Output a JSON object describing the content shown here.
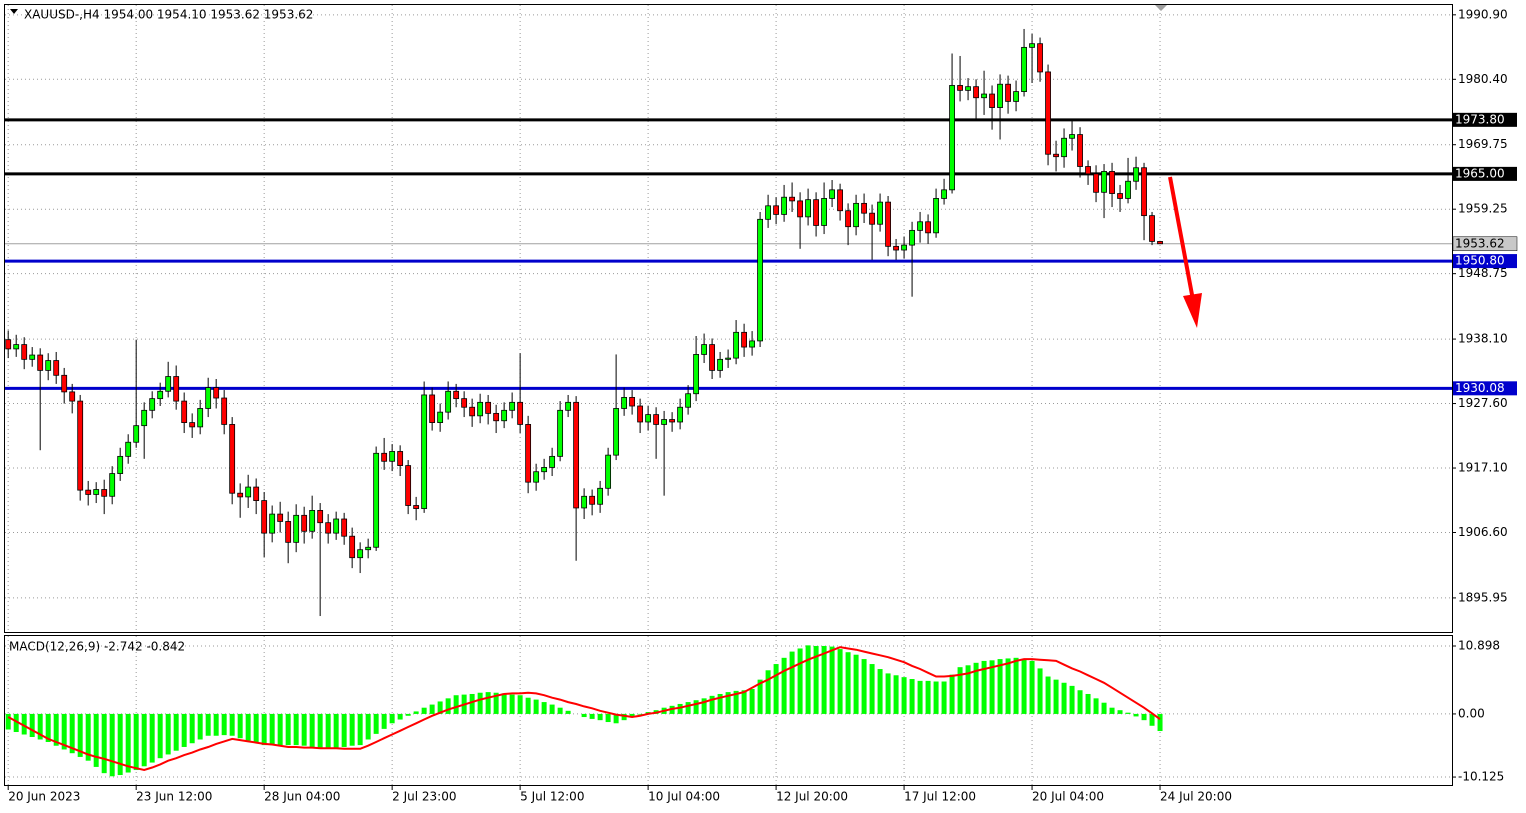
{
  "chart_data": [
    {
      "type": "candlestick",
      "title": "XAUUSD-,H4  1954.00 1954.10 1953.62 1953.62",
      "up_color": "#00ff00",
      "down_color": "#ff0000",
      "grid": true,
      "xlim": [
        -0.4,
        180.5
      ],
      "ylim": [
        1890.4,
        1992.5
      ],
      "yticks": [
        {
          "value": 1990.9,
          "label": "1990.90"
        },
        {
          "value": 1980.4,
          "label": "1980.40"
        },
        1969.75,
        1959.25,
        1948.75,
        {
          "value": 1938.1,
          "label": "1938.10"
        },
        {
          "value": 1927.6,
          "label": "1927.60"
        },
        {
          "value": 1917.1,
          "label": "1917.10"
        },
        {
          "value": 1906.6,
          "label": "1906.60"
        },
        1895.95
      ],
      "xticks": [
        {
          "value": 0,
          "label": "20 Jun 2023"
        },
        {
          "value": 16,
          "label": "23 Jun 12:00"
        },
        {
          "value": 32,
          "label": "28 Jun 04:00"
        },
        {
          "value": 48,
          "label": "2 Jul 23:00"
        },
        {
          "value": 64,
          "label": "5 Jul 12:00"
        },
        {
          "value": 80,
          "label": "10 Jul 04:00"
        },
        {
          "value": 96,
          "label": "12 Jul 20:00"
        },
        {
          "value": 112,
          "label": "17 Jul 12:00"
        },
        {
          "value": 128,
          "label": "20 Jul 04:00"
        },
        {
          "value": 144,
          "label": "24 Jul 20:00"
        }
      ],
      "levels": [
        {
          "value": 1973.8,
          "label": "1973.80",
          "color": "#000000"
        },
        {
          "value": 1965,
          "label": "1965.00",
          "color": "#000000"
        },
        {
          "value": 1950.8,
          "label": "1950.80",
          "color": "#0000cc"
        },
        {
          "value": 1930.08,
          "label": "1930.08",
          "color": "#0000cc"
        }
      ],
      "last_price": 1953.62,
      "open": [
        1938.0,
        1936.5,
        1937.2,
        1934.8,
        1935.5,
        1933.0,
        1934.6,
        1932.2,
        1929.5,
        1928.0,
        1913.5,
        1912.8,
        1913.6,
        1912.5,
        1916.2,
        1919.0,
        1921.3,
        1924.0,
        1926.5,
        1928.4,
        1929.6,
        1932.0,
        1928.0,
        1924.5,
        1923.8,
        1926.8,
        1930.2,
        1928.5,
        1924.2,
        1913.0,
        1912.4,
        1914.0,
        1911.8,
        1906.5,
        1909.6,
        1908.4,
        1905.0,
        1909.4,
        1906.8,
        1910.2,
        1908.2,
        1906.5,
        1908.8,
        1906.0,
        1902.5,
        1903.8,
        1904.2,
        1919.5,
        1918.2,
        1919.8,
        1917.5,
        1911.0,
        1910.5,
        1929.0,
        1924.5,
        1926.2,
        1929.6,
        1928.4,
        1927.0,
        1925.6,
        1927.8,
        1926.0,
        1924.8,
        1926.5,
        1927.8,
        1924.2,
        1914.8,
        1916.5,
        1917.2,
        1919.0,
        1926.5,
        1927.8,
        1910.6,
        1912.5,
        1911.2,
        1913.8,
        1919.2,
        1926.8,
        1928.6,
        1927.2,
        1924.6,
        1925.8,
        1924.2,
        1925.0,
        1924.6,
        1927.0,
        1929.2,
        1935.6,
        1937.2,
        1933.0,
        1934.8,
        1935.0,
        1939.2,
        1936.8,
        1937.8,
        1957.6,
        1959.8,
        1958.4,
        1961.2,
        1960.6,
        1958.0,
        1960.8,
        1956.6,
        1961.0,
        1962.4,
        1959.0,
        1956.4,
        1960.2,
        1958.6,
        1956.8,
        1960.4,
        1953.2,
        1952.6,
        1953.4,
        1955.8,
        1957.2,
        1955.4,
        1961.0,
        1962.4,
        1979.4,
        1978.6,
        1979.2,
        1977.4,
        1978.0,
        1975.8,
        1979.6,
        1976.8,
        1978.4,
        1985.6,
        1986.2,
        1981.6,
        1968.2,
        1967.8,
        1970.8,
        1971.4,
        1966.2,
        1965.0,
        1962.0,
        1965.4,
        1961.8,
        1961.0,
        1963.8,
        1966.0,
        1958.2,
        1954.0
      ],
      "high": [
        1939.5,
        1938.8,
        1938.4,
        1936.8,
        1936.6,
        1935.8,
        1936.0,
        1933.4,
        1930.8,
        1929.0,
        1915.0,
        1914.8,
        1915.2,
        1917.4,
        1920.4,
        1922.6,
        1938.0,
        1927.8,
        1929.6,
        1931.0,
        1934.4,
        1933.8,
        1929.4,
        1926.0,
        1928.2,
        1931.8,
        1931.6,
        1929.8,
        1925.4,
        1914.6,
        1916.0,
        1915.4,
        1913.2,
        1911.0,
        1911.6,
        1910.0,
        1911.2,
        1910.8,
        1912.6,
        1911.4,
        1909.6,
        1910.0,
        1909.8,
        1907.4,
        1905.0,
        1905.6,
        1920.6,
        1922.0,
        1921.0,
        1920.8,
        1918.4,
        1912.4,
        1931.2,
        1930.2,
        1927.6,
        1931.2,
        1930.8,
        1929.6,
        1928.4,
        1929.2,
        1929.0,
        1927.4,
        1927.8,
        1929.4,
        1935.8,
        1925.6,
        1917.8,
        1918.6,
        1920.4,
        1928.0,
        1929.0,
        1928.8,
        1913.8,
        1913.6,
        1915.0,
        1920.4,
        1935.6,
        1930.2,
        1929.8,
        1928.4,
        1927.2,
        1927.0,
        1926.4,
        1926.2,
        1928.4,
        1930.6,
        1938.6,
        1939.0,
        1938.2,
        1936.0,
        1936.4,
        1941.2,
        1940.6,
        1939.4,
        1958.8,
        1961.6,
        1961.2,
        1963.2,
        1963.6,
        1962.0,
        1962.6,
        1962.0,
        1963.6,
        1964.0,
        1963.4,
        1960.2,
        1961.6,
        1961.8,
        1960.0,
        1961.8,
        1961.4,
        1954.4,
        1954.8,
        1957.2,
        1958.8,
        1958.4,
        1962.6,
        1964.2,
        1984.6,
        1984.2,
        1980.6,
        1980.4,
        1981.8,
        1979.4,
        1981.2,
        1981.0,
        1980.2,
        1988.6,
        1987.8,
        1987.2,
        1982.8,
        1970.4,
        1972.4,
        1973.8,
        1972.6,
        1967.2,
        1966.4,
        1966.6,
        1966.8,
        1963.2,
        1967.6,
        1967.8,
        1966.8,
        1958.8,
        1954.1
      ],
      "low": [
        1935.0,
        1935.2,
        1933.2,
        1933.6,
        1920.0,
        1931.4,
        1930.8,
        1927.6,
        1926.0,
        1911.8,
        1911.0,
        1911.4,
        1909.6,
        1911.2,
        1915.0,
        1917.8,
        1920.4,
        1918.6,
        1925.2,
        1927.2,
        1928.6,
        1926.6,
        1922.8,
        1922.0,
        1922.6,
        1925.4,
        1926.8,
        1922.6,
        1911.2,
        1909.0,
        1910.6,
        1909.6,
        1902.6,
        1905.0,
        1906.6,
        1901.6,
        1903.4,
        1904.8,
        1905.6,
        1893.0,
        1904.8,
        1905.4,
        1904.6,
        1900.8,
        1900.0,
        1902.4,
        1903.6,
        1916.8,
        1916.6,
        1915.8,
        1909.6,
        1908.6,
        1909.8,
        1923.2,
        1923.0,
        1925.0,
        1927.0,
        1925.4,
        1923.8,
        1924.4,
        1924.2,
        1922.8,
        1923.6,
        1925.2,
        1922.8,
        1913.0,
        1913.4,
        1915.2,
        1915.8,
        1918.2,
        1925.4,
        1902.0,
        1908.8,
        1909.4,
        1909.8,
        1912.6,
        1918.4,
        1925.6,
        1925.8,
        1922.8,
        1923.2,
        1918.6,
        1912.6,
        1923.0,
        1923.4,
        1925.8,
        1928.0,
        1934.2,
        1931.6,
        1931.8,
        1933.4,
        1934.0,
        1935.2,
        1935.4,
        1936.8,
        1956.2,
        1956.8,
        1957.2,
        1958.8,
        1952.8,
        1956.6,
        1954.8,
        1955.2,
        1959.6,
        1957.4,
        1953.4,
        1955.0,
        1957.0,
        1951.0,
        1955.6,
        1951.6,
        1951.0,
        1951.2,
        1945.0,
        1953.8,
        1953.6,
        1954.6,
        1960.0,
        1961.8,
        1976.8,
        1977.0,
        1973.8,
        1974.6,
        1972.2,
        1970.6,
        1974.8,
        1975.2,
        1977.6,
        1979.8,
        1980.0,
        1966.4,
        1965.4,
        1966.0,
        1968.8,
        1964.4,
        1963.2,
        1960.4,
        1957.8,
        1959.6,
        1958.8,
        1960.2,
        1962.4,
        1954.2,
        1953.4,
        1953.62
      ],
      "close": [
        1936.5,
        1937.2,
        1934.8,
        1935.5,
        1933.0,
        1934.6,
        1932.2,
        1929.5,
        1928.0,
        1913.5,
        1912.8,
        1913.6,
        1912.5,
        1916.2,
        1919.0,
        1921.3,
        1924.0,
        1926.5,
        1928.4,
        1929.6,
        1932.0,
        1928.0,
        1924.5,
        1923.8,
        1926.8,
        1930.2,
        1928.5,
        1924.2,
        1913.0,
        1912.4,
        1914.0,
        1911.8,
        1906.5,
        1909.6,
        1908.4,
        1905.0,
        1909.4,
        1906.8,
        1910.2,
        1908.2,
        1906.5,
        1908.8,
        1906.0,
        1902.5,
        1903.8,
        1904.2,
        1919.5,
        1918.2,
        1919.8,
        1917.5,
        1911.0,
        1910.5,
        1929.0,
        1924.5,
        1926.2,
        1929.6,
        1928.4,
        1927.0,
        1925.6,
        1927.8,
        1926.0,
        1924.8,
        1926.5,
        1927.8,
        1924.2,
        1914.8,
        1916.5,
        1917.2,
        1919.0,
        1926.5,
        1927.8,
        1910.6,
        1912.5,
        1911.2,
        1913.8,
        1919.2,
        1926.8,
        1928.6,
        1927.2,
        1924.6,
        1925.8,
        1924.2,
        1925.0,
        1924.6,
        1927.0,
        1929.2,
        1935.6,
        1937.2,
        1933.0,
        1934.8,
        1935.0,
        1939.2,
        1936.8,
        1937.8,
        1957.6,
        1959.8,
        1958.4,
        1961.2,
        1960.6,
        1958.0,
        1960.8,
        1956.6,
        1961.0,
        1962.4,
        1959.0,
        1956.4,
        1960.2,
        1958.6,
        1956.8,
        1960.4,
        1953.2,
        1952.6,
        1953.4,
        1955.8,
        1957.2,
        1955.4,
        1961.0,
        1962.4,
        1979.4,
        1978.6,
        1979.2,
        1977.4,
        1978.0,
        1975.8,
        1979.6,
        1976.8,
        1978.4,
        1985.6,
        1986.2,
        1981.6,
        1968.2,
        1967.8,
        1970.8,
        1971.4,
        1966.2,
        1965.0,
        1962.0,
        1965.4,
        1961.8,
        1961.0,
        1963.8,
        1966.0,
        1958.2,
        1954.0,
        1953.62
      ]
    },
    {
      "type": "macd",
      "title": "MACD(12,26,9) -2.742 -0.842",
      "ylim": [
        -11.4,
        12.5
      ],
      "yticks": [
        10.898,
        {
          "value": 0,
          "label": "0.00"
        },
        -10.125
      ],
      "histogram": {
        "color": "#00ff00",
        "values": [
          -2.5,
          -2.9,
          -3.3,
          -3.7,
          -4.1,
          -4.5,
          -5.1,
          -5.7,
          -6.3,
          -6.9,
          -7.5,
          -8.5,
          -9.5,
          -10.0,
          -9.8,
          -9.4,
          -9.0,
          -8.4,
          -7.8,
          -7.1,
          -6.5,
          -5.9,
          -5.3,
          -4.7,
          -4.1,
          -3.5,
          -3.5,
          -3.4,
          -3.5,
          -3.9,
          -4.3,
          -4.6,
          -5.0,
          -5.0,
          -5.0,
          -5.0,
          -5.0,
          -5.1,
          -5.3,
          -5.4,
          -5.5,
          -5.4,
          -5.3,
          -5.1,
          -5.0,
          -4.1,
          -3.2,
          -2.4,
          -1.5,
          -0.9,
          -0.3,
          0.4,
          1.0,
          1.5,
          2.0,
          2.5,
          3.0,
          3.1,
          3.2,
          3.4,
          3.5,
          3.4,
          3.3,
          3.1,
          3.0,
          2.6,
          2.3,
          1.9,
          1.5,
          1.0,
          0.5,
          0.0,
          -0.5,
          -0.8,
          -1.0,
          -1.3,
          -1.5,
          -1.0,
          -0.5,
          -0.1,
          0.3,
          0.6,
          1.0,
          1.3,
          1.6,
          1.9,
          2.2,
          2.5,
          2.9,
          3.2,
          3.5,
          3.7,
          3.8,
          4.0,
          5.5,
          7.0,
          8.0,
          9.0,
          10.0,
          10.5,
          11.0,
          10.9,
          10.9,
          10.8,
          10.4,
          9.9,
          9.5,
          8.8,
          8.0,
          7.2,
          6.5,
          6.2,
          5.9,
          5.6,
          5.3,
          5.3,
          5.2,
          5.2,
          6.3,
          7.5,
          7.8,
          8.2,
          8.5,
          8.6,
          8.8,
          8.9,
          9.0,
          8.8,
          8.5,
          7.3,
          6.0,
          5.5,
          5.0,
          4.5,
          3.8,
          3.2,
          2.5,
          1.8,
          1.0,
          0.6,
          0.2,
          -0.4,
          -1.0,
          -1.9,
          -2.742
        ]
      },
      "signal": {
        "color": "#ff0000",
        "values": [
          -0.5,
          -1.2,
          -1.9,
          -2.6,
          -3.3,
          -4.0,
          -4.5,
          -5.0,
          -5.5,
          -6.0,
          -6.5,
          -6.9,
          -7.2,
          -7.6,
          -8.0,
          -8.4,
          -8.7,
          -9.0,
          -8.6,
          -8.1,
          -7.5,
          -7.1,
          -6.6,
          -6.2,
          -5.7,
          -5.3,
          -4.8,
          -4.4,
          -4.0,
          -4.2,
          -4.4,
          -4.6,
          -4.8,
          -4.9,
          -5.1,
          -5.3,
          -5.3,
          -5.4,
          -5.4,
          -5.5,
          -5.5,
          -5.5,
          -5.6,
          -5.6,
          -5.6,
          -5.1,
          -4.5,
          -3.9,
          -3.3,
          -2.7,
          -2.1,
          -1.5,
          -0.9,
          -0.3,
          0.2,
          0.7,
          1.1,
          1.5,
          1.9,
          2.3,
          2.6,
          2.9,
          3.2,
          3.3,
          3.3,
          3.4,
          3.3,
          3.0,
          2.6,
          2.3,
          1.9,
          1.6,
          1.2,
          0.9,
          0.5,
          0.2,
          -0.1,
          -0.3,
          -0.5,
          -0.3,
          0.0,
          0.2,
          0.5,
          0.8,
          1.0,
          1.3,
          1.6,
          1.9,
          2.3,
          2.6,
          2.9,
          3.2,
          3.5,
          4.2,
          4.9,
          5.5,
          6.2,
          6.9,
          7.5,
          8.1,
          8.7,
          9.2,
          9.7,
          10.2,
          10.7,
          10.5,
          10.3,
          10.0,
          9.7,
          9.4,
          9.1,
          8.7,
          8.3,
          7.7,
          7.2,
          6.6,
          6.0,
          6.0,
          6.1,
          6.3,
          6.5,
          6.9,
          7.2,
          7.5,
          7.8,
          8.1,
          8.5,
          8.8,
          8.8,
          8.7,
          8.6,
          8.5,
          7.9,
          7.3,
          6.8,
          6.2,
          5.6,
          5.0,
          4.2,
          3.4,
          2.6,
          1.8,
          1.0,
          0.1,
          -0.842
        ]
      }
    }
  ]
}
